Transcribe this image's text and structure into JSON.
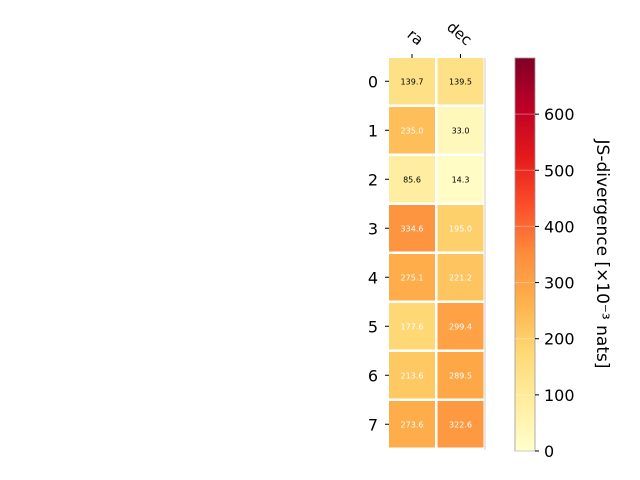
{
  "chart_data": {
    "type": "heatmap",
    "x_categories": [
      "ra",
      "dec"
    ],
    "y_categories": [
      "0",
      "1",
      "2",
      "3",
      "4",
      "5",
      "6",
      "7"
    ],
    "values": [
      [
        139.7,
        139.5
      ],
      [
        235.0,
        33.0
      ],
      [
        85.6,
        14.3
      ],
      [
        334.6,
        195.0
      ],
      [
        275.1,
        221.2
      ],
      [
        177.6,
        299.4
      ],
      [
        213.6,
        289.5
      ],
      [
        273.6,
        322.6
      ]
    ],
    "cell_labels": [
      [
        "139.7",
        "139.5"
      ],
      [
        "235.0",
        "33.0"
      ],
      [
        "85.6",
        "14.3"
      ],
      [
        "334.6",
        "195.0"
      ],
      [
        "275.1",
        "221.2"
      ],
      [
        "177.6",
        "299.4"
      ],
      [
        "213.6",
        "289.5"
      ],
      [
        "273.6",
        "322.6"
      ]
    ],
    "colorbar": {
      "label": "JS-divergence [×10⁻³ nats]",
      "range": [
        0,
        700
      ],
      "ticks": [
        "0",
        "100",
        "200",
        "300",
        "400",
        "500",
        "600"
      ],
      "tick_values": [
        0,
        100,
        200,
        300,
        400,
        500,
        600
      ],
      "colormap": "YlOrRd"
    }
  }
}
